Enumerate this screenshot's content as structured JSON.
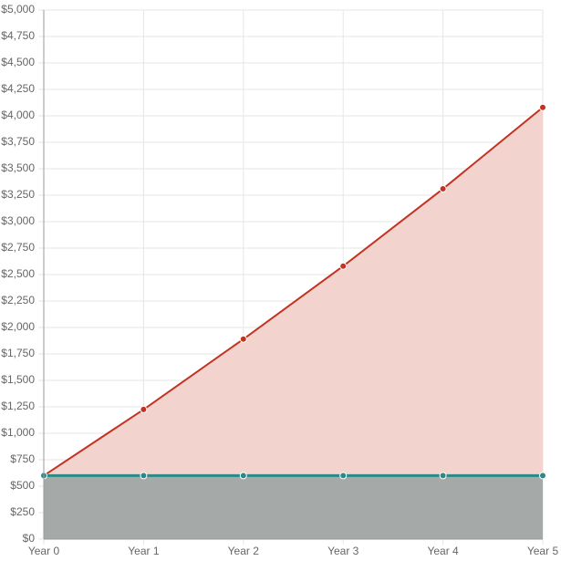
{
  "chart_data": {
    "type": "area",
    "categories": [
      "Year 0",
      "Year 1",
      "Year 2",
      "Year 3",
      "Year 4",
      "Year 5"
    ],
    "series": [
      {
        "color": "#c23321",
        "fill": "#f2d3ce",
        "values": [
          600,
          1225,
          1890,
          2580,
          3310,
          4080
        ]
      },
      {
        "color": "#2b8a87",
        "fill": "#a5aaa9",
        "values": [
          600,
          600,
          600,
          600,
          600,
          600
        ]
      }
    ],
    "ylim": [
      0,
      5000
    ],
    "yticks": [
      {
        "value": 0,
        "label": "$0"
      },
      {
        "value": 250,
        "label": "$250"
      },
      {
        "value": 500,
        "label": "$500"
      },
      {
        "value": 750,
        "label": "$750"
      },
      {
        "value": 1000,
        "label": "$1,000"
      },
      {
        "value": 1250,
        "label": "$1,250"
      },
      {
        "value": 1500,
        "label": "$1,500"
      },
      {
        "value": 1750,
        "label": "$1,750"
      },
      {
        "value": 2000,
        "label": "$2,000"
      },
      {
        "value": 2250,
        "label": "$2,250"
      },
      {
        "value": 2500,
        "label": "$2,500"
      },
      {
        "value": 2750,
        "label": "$2,750"
      },
      {
        "value": 3000,
        "label": "$3,000"
      },
      {
        "value": 3250,
        "label": "$3,250"
      },
      {
        "value": 3500,
        "label": "$3,500"
      },
      {
        "value": 3750,
        "label": "$3,750"
      },
      {
        "value": 4000,
        "label": "$4,000"
      },
      {
        "value": 4250,
        "label": "$4,250"
      },
      {
        "value": 4500,
        "label": "$4,500"
      },
      {
        "value": 4750,
        "label": "$4,750"
      },
      {
        "value": 5000,
        "label": "$5,000"
      }
    ],
    "grid": true
  }
}
